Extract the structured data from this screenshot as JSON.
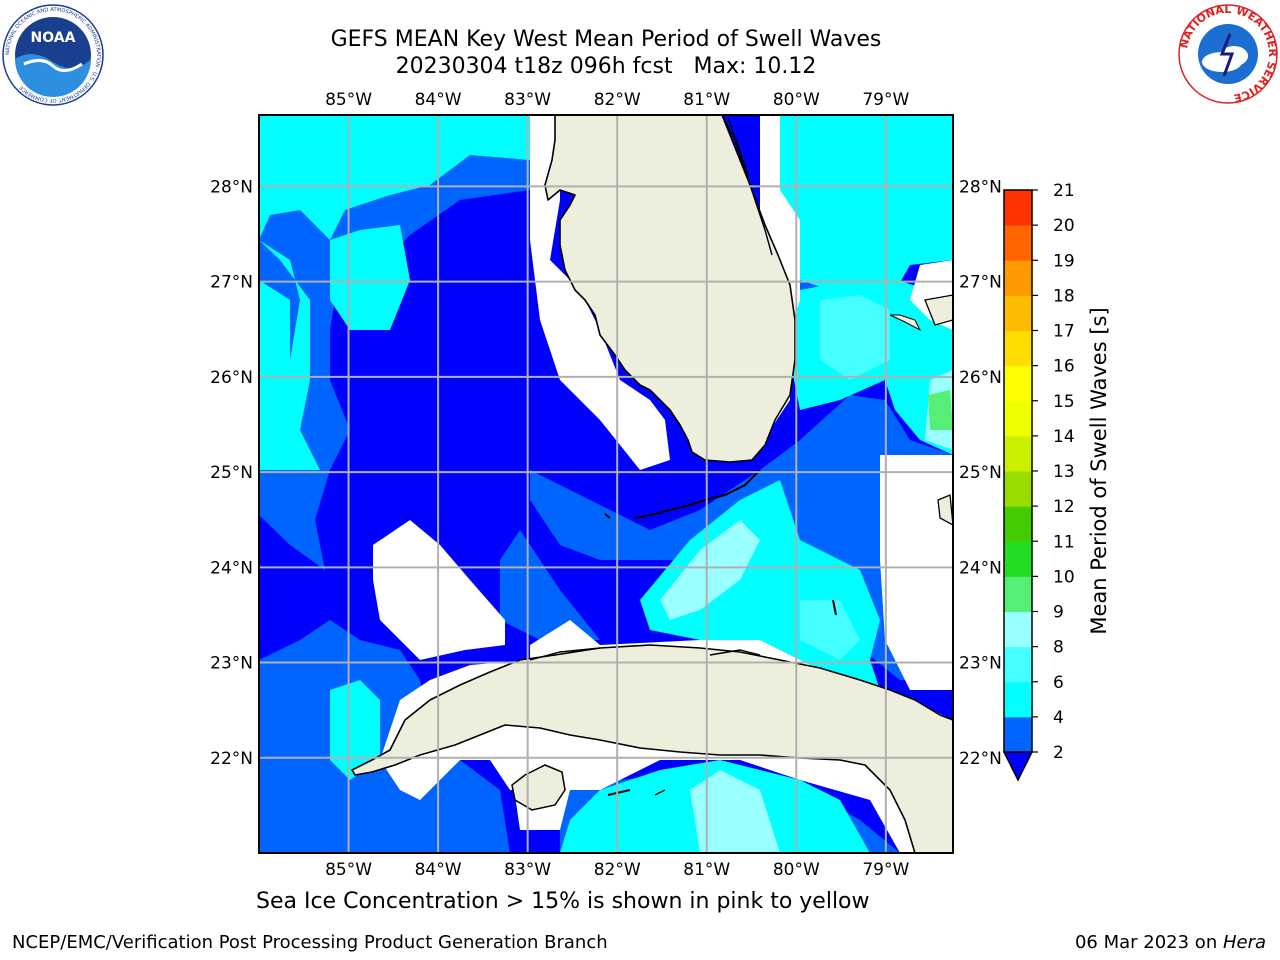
{
  "header": {
    "title_line1": "GEFS MEAN Key West Mean Period of Swell Waves",
    "title_line2": "20230304 t18z 096h fcst   Max: 10.12",
    "noaa_logo_text": "NOAA",
    "noaa_ring_text": "NATIONAL OCEANIC AND ATMOSPHERIC ADMINISTRATION · U.S. DEPARTMENT OF COMMERCE",
    "nws_ring_text": "NATIONAL WEATHER SERVICE"
  },
  "map": {
    "lon_labels": [
      "85°W",
      "84°W",
      "83°W",
      "82°W",
      "81°W",
      "80°W",
      "79°W"
    ],
    "lat_labels": [
      "28°N",
      "27°N",
      "26°N",
      "25°N",
      "24°N",
      "23°N",
      "22°N"
    ],
    "extent": {
      "lon_min": -86.0,
      "lon_max": -78.25,
      "lat_min": 21.0,
      "lat_max": 28.75
    },
    "ocean_background": "#0000ff",
    "land_color": "#eeeedd",
    "grid_color": "#b0b0b0"
  },
  "colorbar": {
    "title": "Mean Period of Swell Waves [s]",
    "ticks": [
      "2",
      "4",
      "6",
      "8",
      "9",
      "10",
      "11",
      "12",
      "13",
      "14",
      "15",
      "16",
      "17",
      "18",
      "19",
      "20",
      "21"
    ],
    "colors": [
      "#0064ff",
      "#00ffff",
      "#44ffff",
      "#99ffff",
      "#55ee77",
      "#22dd22",
      "#44cc00",
      "#99dd00",
      "#ccee00",
      "#eeff00",
      "#ffff00",
      "#ffdd00",
      "#ffbb00",
      "#ff9900",
      "#ff6600",
      "#ff3300"
    ],
    "under_color": "#0000ff"
  },
  "footer": {
    "ice_note": "Sea Ice Concentration > 15% is shown in pink to yellow",
    "left": "NCEP/EMC/Verification Post Processing Product Generation Branch",
    "right_date": "06 Mar 2023 on ",
    "right_host": "Hera"
  }
}
